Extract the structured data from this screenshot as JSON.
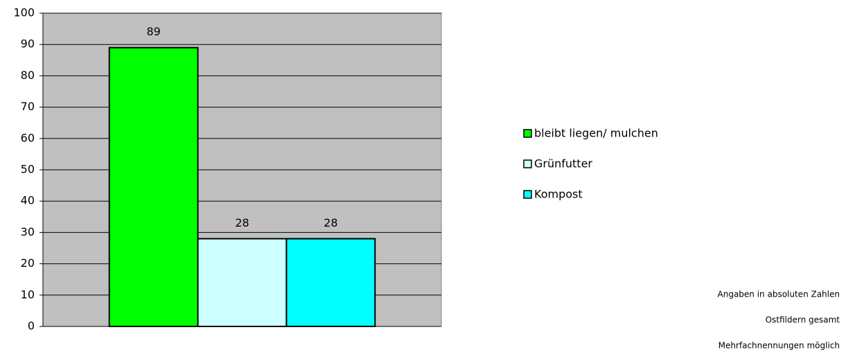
{
  "chart_data": {
    "type": "bar",
    "categories": [
      null
    ],
    "series": [
      {
        "name": "bleibt liegen/ mulchen",
        "color": "#00ff00",
        "values": [
          89
        ]
      },
      {
        "name": "Grünfutter",
        "color": "#ccffff",
        "values": [
          28
        ]
      },
      {
        "name": "Kompost",
        "color": "#00ffff",
        "values": [
          28
        ]
      }
    ],
    "ylim": [
      0,
      100
    ],
    "yticks": [
      0,
      10,
      20,
      30,
      40,
      50,
      60,
      70,
      80,
      90,
      100
    ],
    "grid": true,
    "legend": "right",
    "annotations": [
      "Angaben in absoluten Zahlen",
      "Ostfildern gesamt",
      "Mehrfachnennungen möglich"
    ]
  }
}
